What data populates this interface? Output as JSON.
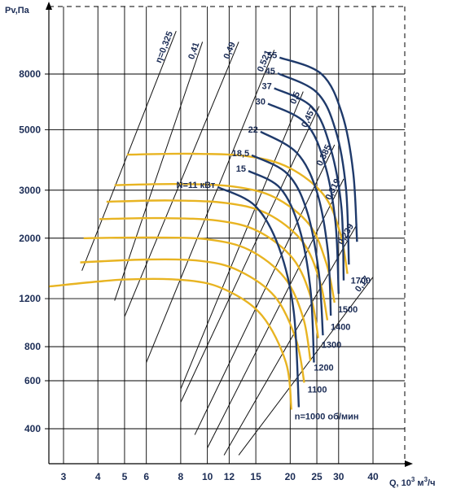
{
  "chart_data": {
    "type": "line",
    "title": "",
    "ylabel": "Pv,Па",
    "xlabel_parts": {
      "prefix": "Q, 10",
      "exp1": "3",
      "mid": " м",
      "exp2": "3",
      "suffix": "/ч"
    },
    "x_scale": "log",
    "y_scale": "log",
    "xlim": [
      2.6,
      46
    ],
    "ylim": [
      300,
      15000
    ],
    "x_ticks": [
      3,
      4,
      5,
      6,
      8,
      10,
      12,
      15,
      20,
      25,
      30,
      40
    ],
    "y_ticks": [
      400,
      600,
      800,
      1200,
      2000,
      3000,
      5000,
      8000
    ],
    "grid": true,
    "efficiency_lines": [
      {
        "label": "η=0,325",
        "points": [
          [
            3.5,
            1520
          ],
          [
            7.7,
            11500
          ]
        ]
      },
      {
        "label": "0,41",
        "points": [
          [
            4.6,
            1180
          ],
          [
            9.6,
            10500
          ]
        ]
      },
      {
        "label": "0,49",
        "points": [
          [
            5.0,
            1030
          ],
          [
            13.0,
            10500
          ]
        ]
      },
      {
        "label": "0,521",
        "points": [
          [
            6.0,
            700
          ],
          [
            17.5,
            9800
          ]
        ]
      },
      {
        "label": "0,5",
        "points": [
          [
            8.0,
            560
          ],
          [
            22.3,
            6900
          ]
        ]
      },
      {
        "label": "0,457",
        "points": [
          [
            8.0,
            500
          ],
          [
            25.5,
            6100
          ]
        ]
      },
      {
        "label": "0,385",
        "points": [
          [
            9.0,
            380
          ],
          [
            29.0,
            4400
          ]
        ]
      },
      {
        "label": "0,319",
        "points": [
          [
            10.0,
            340
          ],
          [
            31.3,
            3300
          ]
        ]
      },
      {
        "label": "0,239",
        "points": [
          [
            11.5,
            320
          ],
          [
            35.0,
            2250
          ]
        ]
      },
      {
        "label": "0,17",
        "points": [
          [
            13.0,
            320
          ],
          [
            40.0,
            1440
          ]
        ]
      }
    ],
    "power_curves": [
      {
        "name": "N=11 кВт",
        "points": [
          [
            10.9,
            3080
          ],
          [
            14.9,
            2630
          ],
          [
            18.2,
            1850
          ],
          [
            20.6,
            1080
          ],
          [
            21.5,
            480
          ]
        ]
      },
      {
        "name": "15",
        "points": [
          [
            14.1,
            3530
          ],
          [
            18.4,
            3050
          ],
          [
            21.6,
            2170
          ],
          [
            23.7,
            1300
          ],
          [
            24.4,
            700
          ]
        ]
      },
      {
        "name": "18,5",
        "points": [
          [
            14.5,
            4030
          ],
          [
            19.5,
            3450
          ],
          [
            23.0,
            2520
          ],
          [
            25.4,
            1500
          ],
          [
            26.3,
            880
          ]
        ]
      },
      {
        "name": "22",
        "points": [
          [
            15.6,
            4920
          ],
          [
            21.1,
            4120
          ],
          [
            25.0,
            2960
          ],
          [
            27.4,
            1800
          ],
          [
            28.1,
            1040
          ]
        ]
      },
      {
        "name": "30",
        "points": [
          [
            16.6,
            6230
          ],
          [
            22.7,
            5300
          ],
          [
            26.6,
            3800
          ],
          [
            29.2,
            2300
          ],
          [
            30.0,
            1250
          ]
        ]
      },
      {
        "name": "37",
        "points": [
          [
            17.5,
            7100
          ],
          [
            24.0,
            6050
          ],
          [
            28.0,
            4300
          ],
          [
            30.7,
            2600
          ],
          [
            31.3,
            1400
          ]
        ]
      },
      {
        "name": "45",
        "points": [
          [
            18.0,
            8050
          ],
          [
            25.0,
            6850
          ],
          [
            29.3,
            4950
          ],
          [
            31.9,
            3050
          ],
          [
            32.7,
            1600
          ]
        ]
      },
      {
        "name": "55",
        "points": [
          [
            18.3,
            9200
          ],
          [
            26.0,
            8000
          ],
          [
            30.9,
            5700
          ],
          [
            33.9,
            3480
          ],
          [
            35.0,
            1940
          ]
        ]
      }
    ],
    "speed_curves": [
      {
        "name": "n=1000 об/мин",
        "points": [
          [
            2.66,
            1330
          ],
          [
            5.0,
            1410
          ],
          [
            8.5,
            1400
          ],
          [
            11.7,
            1290
          ],
          [
            15.8,
            1040
          ],
          [
            19.3,
            700
          ],
          [
            20.2,
            470
          ]
        ]
      },
      {
        "name": "1100",
        "points": [
          [
            3.45,
            1630
          ],
          [
            6.0,
            1670
          ],
          [
            9.5,
            1650
          ],
          [
            13.0,
            1520
          ],
          [
            17.6,
            1220
          ],
          [
            21.0,
            850
          ],
          [
            22.5,
            590
          ]
        ]
      },
      {
        "name": "1200",
        "points": [
          [
            3.55,
            2000
          ],
          [
            6.3,
            2010
          ],
          [
            10.0,
            1980
          ],
          [
            14.2,
            1810
          ],
          [
            19.1,
            1430
          ],
          [
            22.3,
            1020
          ],
          [
            23.7,
            710
          ]
        ]
      },
      {
        "name": "1300",
        "points": [
          [
            4.05,
            2350
          ],
          [
            6.8,
            2370
          ],
          [
            10.9,
            2320
          ],
          [
            15.3,
            2120
          ],
          [
            20.5,
            1680
          ],
          [
            23.8,
            1210
          ],
          [
            25.3,
            860
          ]
        ]
      },
      {
        "name": "1400",
        "points": [
          [
            4.3,
            2720
          ],
          [
            7.3,
            2750
          ],
          [
            11.7,
            2690
          ],
          [
            16.5,
            2460
          ],
          [
            22.1,
            1950
          ],
          [
            25.6,
            1400
          ],
          [
            27.3,
            1000
          ]
        ]
      },
      {
        "name": "1500",
        "points": [
          [
            4.6,
            3130
          ],
          [
            7.8,
            3160
          ],
          [
            12.5,
            3090
          ],
          [
            17.6,
            2820
          ],
          [
            23.5,
            2240
          ],
          [
            27.1,
            1610
          ],
          [
            29.0,
            1160
          ]
        ]
      },
      {
        "name": "1700",
        "points": [
          [
            5.1,
            4050
          ],
          [
            8.8,
            4080
          ],
          [
            14.1,
            3990
          ],
          [
            19.9,
            3620
          ],
          [
            26.5,
            2880
          ],
          [
            30.4,
            2090
          ],
          [
            32.3,
            1480
          ]
        ]
      }
    ]
  }
}
